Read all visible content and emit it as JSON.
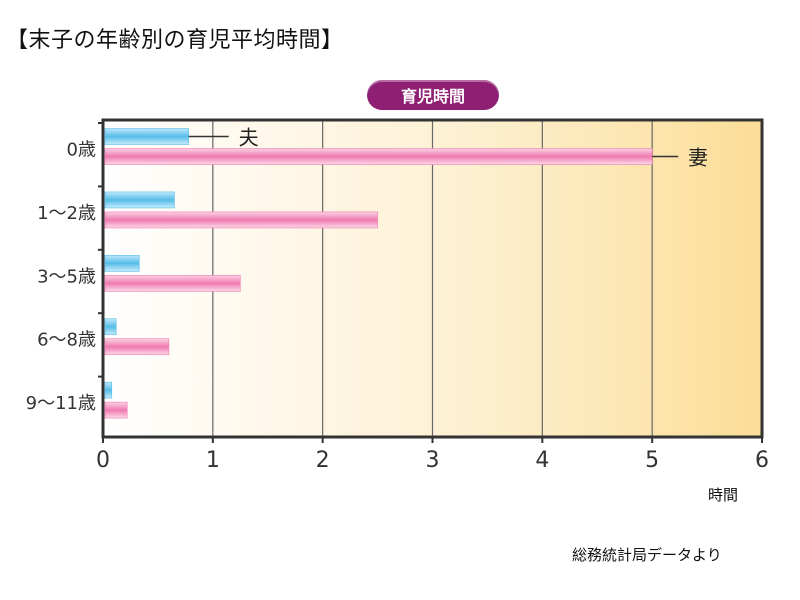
{
  "page": {
    "title": "【末子の年齢別の育児平均時間】",
    "legend_badge": "育児時間",
    "source": "総務統計局データより"
  },
  "chart_data": {
    "type": "bar",
    "orientation": "horizontal",
    "title": "【末子の年齢別の育児平均時間】",
    "xlabel": "時間",
    "ylabel": "",
    "xlim": [
      0,
      6
    ],
    "xticks": [
      0,
      1,
      2,
      3,
      4,
      5,
      6
    ],
    "grid": true,
    "categories": [
      "0歳",
      "1～2歳",
      "3～5歳",
      "6～8歳",
      "9～11歳"
    ],
    "series": [
      {
        "name": "夫",
        "color": "#56bde8",
        "values": [
          0.78,
          0.65,
          0.33,
          0.12,
          0.08
        ]
      },
      {
        "name": "妻",
        "color": "#f07ab0",
        "values": [
          5.0,
          2.5,
          1.25,
          0.6,
          0.22
        ]
      }
    ],
    "annotations": [
      {
        "text": "夫",
        "series": 0,
        "category": 0
      },
      {
        "text": "妻",
        "series": 1,
        "category": 0
      }
    ],
    "colors": {
      "background_warm": "#fbe3a8",
      "badge": "#8e1f73"
    }
  }
}
